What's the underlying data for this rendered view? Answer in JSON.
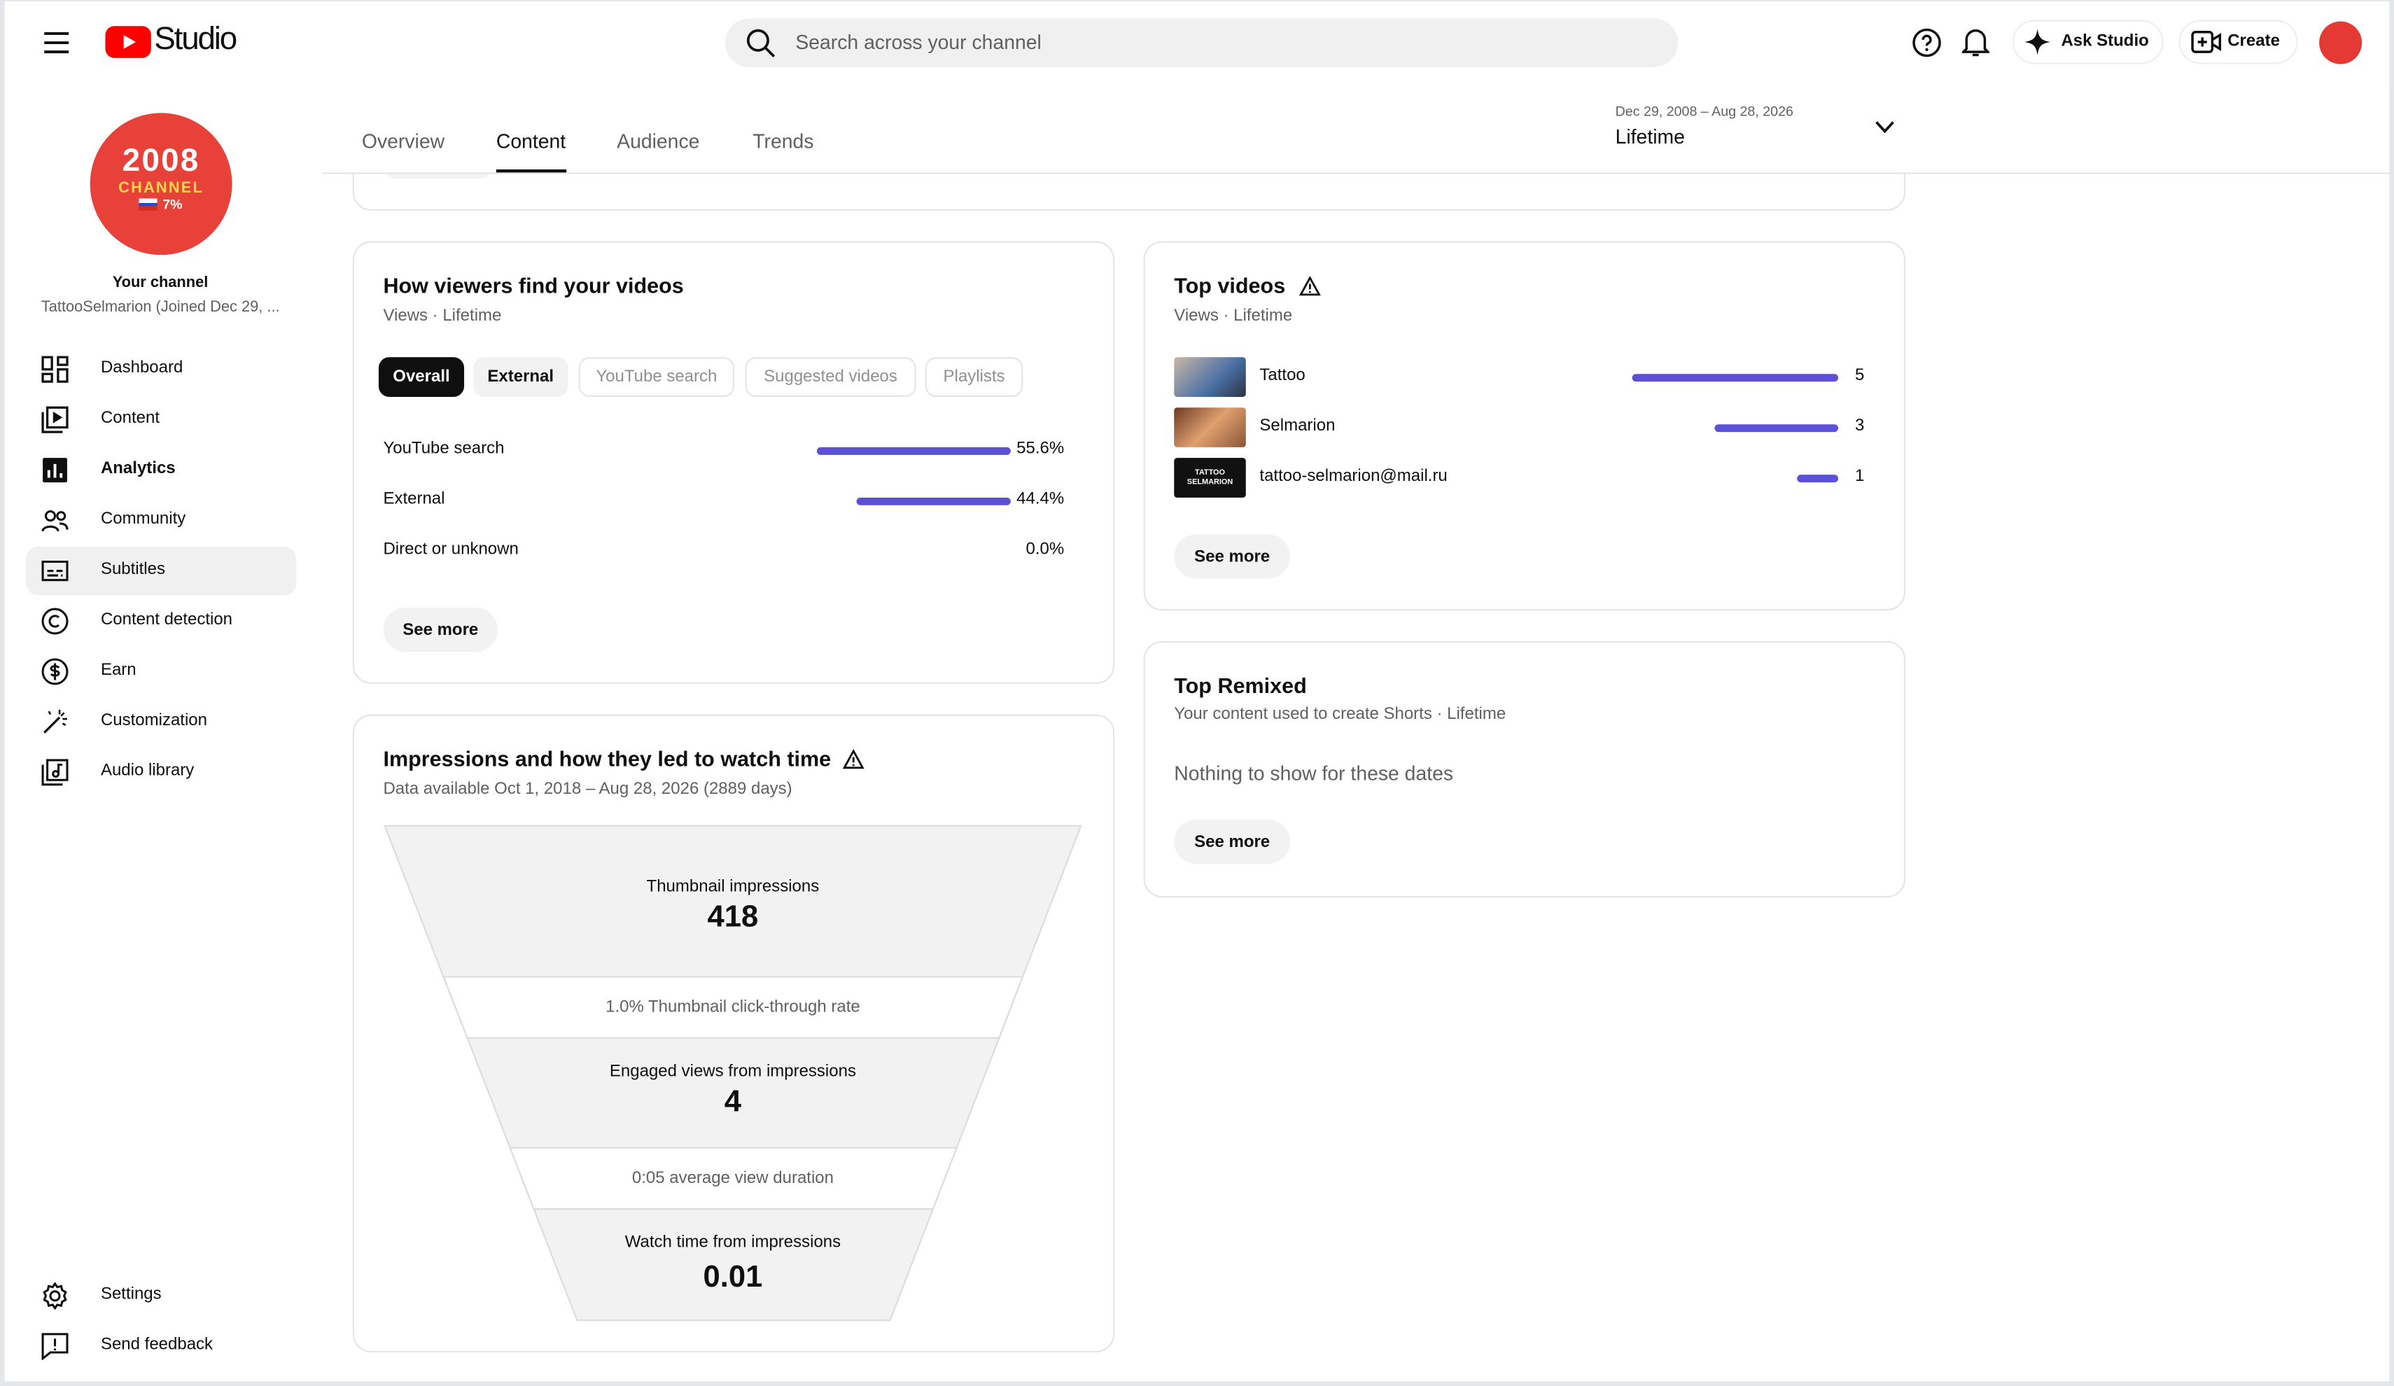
{
  "header": {
    "logo": "Studio",
    "search_placeholder": "Search across your channel",
    "ask": "Ask Studio",
    "create": "Create"
  },
  "tabs": [
    "Overview",
    "Content",
    "Audience",
    "Trends"
  ],
  "active_tab": 1,
  "date_range": {
    "range": "Dec 29, 2008 – Aug 28, 2026",
    "label": "Lifetime"
  },
  "sidebar": {
    "avatar_text": [
      "2008",
      "CHANNEL",
      "7%"
    ],
    "channel_label": "Your channel",
    "channel_name": "TattooSelmarion (Joined Dec 29, ...",
    "nav": [
      "Dashboard",
      "Content",
      "Analytics",
      "Community",
      "Subtitles",
      "Content detection",
      "Earn",
      "Customization",
      "Audio library"
    ],
    "active_nav": 2,
    "footer_nav": [
      "Settings",
      "Send feedback"
    ]
  },
  "traffic": {
    "title": "How viewers find your videos",
    "subtitle": "Views · Lifetime",
    "filters": [
      "Overall",
      "External",
      "YouTube search",
      "Suggested videos",
      "Playlists"
    ],
    "active_filter": 0,
    "categories": [
      "YouTube search",
      "External",
      "Direct or unknown"
    ],
    "values": [
      55.6,
      44.4,
      0.0
    ],
    "value_labels": [
      "55.6%",
      "44.4%",
      "0.0%"
    ],
    "see_more": "See more"
  },
  "top_videos": {
    "title": "Top videos",
    "subtitle": "Views · Lifetime",
    "categories": [
      "Tattoo",
      "Selmarion",
      "tattoo-selmarion@mail.ru"
    ],
    "values": [
      5,
      3,
      1
    ],
    "thumb_text": "TATTOO SELMARION",
    "see_more": "See more"
  },
  "top_remixed": {
    "title": "Top Remixed",
    "subtitle": "Your content used to create Shorts · Lifetime",
    "empty": "Nothing to show for these dates",
    "see_more": "See more"
  },
  "funnel": {
    "title": "Impressions and how they led to watch time",
    "subtitle": "Data available Oct 1, 2018 – Aug 28, 2026 (2889 days)",
    "stages": [
      {
        "label": "Thumbnail impressions",
        "value": 418
      },
      {
        "label": "Engaged views from impressions",
        "value": 4
      },
      {
        "label": "Watch time from impressions",
        "value": 0.01
      }
    ],
    "rates": [
      "1.0% Thumbnail click-through rate",
      "0:05 average view duration"
    ]
  }
}
